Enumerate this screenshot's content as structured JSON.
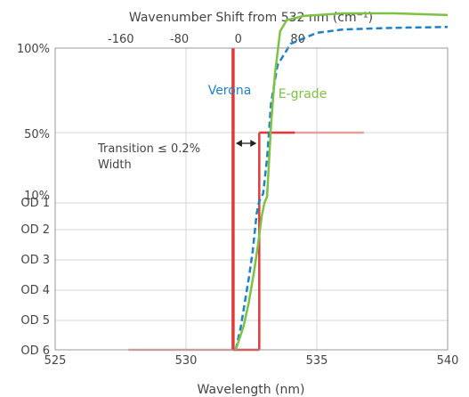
{
  "chart_data": {
    "type": "line",
    "title_top": "Wavenumber Shift from 532 nm (cm⁻¹)",
    "xlabel": "Wavelength (nm)",
    "x_ticks": [
      "525",
      "530",
      "535",
      "540"
    ],
    "x_tick_values": [
      525,
      530,
      535,
      540
    ],
    "top_ticks": [
      "80",
      "0",
      "-80",
      "-160"
    ],
    "top_tick_values": [
      80,
      0,
      -80,
      -160
    ],
    "y_ticks": [
      "100%",
      "50%",
      "10%",
      "OD 1",
      "OD 2",
      "OD 3",
      "OD 4",
      "OD 5",
      "OD 6"
    ],
    "xlim": [
      525,
      540
    ],
    "grid": true,
    "series": [
      {
        "name": "Verona",
        "color": "#1e82c4",
        "style": "dashed",
        "points": [
          [
            531.9,
            0
          ],
          [
            532.1,
            0.8
          ],
          [
            532.25,
            1.6
          ],
          [
            532.4,
            2.4
          ],
          [
            532.55,
            3.3
          ],
          [
            532.7,
            4.6
          ],
          [
            532.8,
            5.3
          ],
          [
            532.95,
            6.05
          ],
          [
            533.1,
            6.6
          ],
          [
            533.25,
            7.35
          ],
          [
            533.5,
            7.8
          ],
          [
            534.0,
            8.05
          ],
          [
            535.0,
            8.18
          ],
          [
            536.0,
            8.22
          ],
          [
            538.0,
            8.24
          ],
          [
            540.0,
            8.25
          ]
        ]
      },
      {
        "name": "E-grade",
        "color": "#7dc242",
        "style": "solid",
        "points": [
          [
            531.9,
            0
          ],
          [
            532.2,
            0.8
          ],
          [
            532.4,
            1.6
          ],
          [
            532.6,
            2.6
          ],
          [
            532.75,
            3.5
          ],
          [
            532.9,
            4.55
          ],
          [
            533.0,
            5.05
          ],
          [
            533.1,
            6.0
          ],
          [
            533.25,
            7.1
          ],
          [
            533.4,
            7.7
          ],
          [
            533.6,
            8.2
          ],
          [
            533.85,
            8.33
          ],
          [
            534.5,
            8.38
          ],
          [
            536.0,
            8.41
          ],
          [
            538.0,
            8.41
          ],
          [
            540.0,
            8.39
          ]
        ]
      }
    ],
    "annotation": {
      "line1": "Transition ≤ 0.2%",
      "line2": "Width",
      "x_start": 531.8,
      "x_end": 532.8,
      "level": "50%"
    },
    "laser_line": {
      "color": "#e03a3a",
      "x": 531.8,
      "step_x": 532.8,
      "start_x": 527.8,
      "end_x": 536.8
    }
  }
}
